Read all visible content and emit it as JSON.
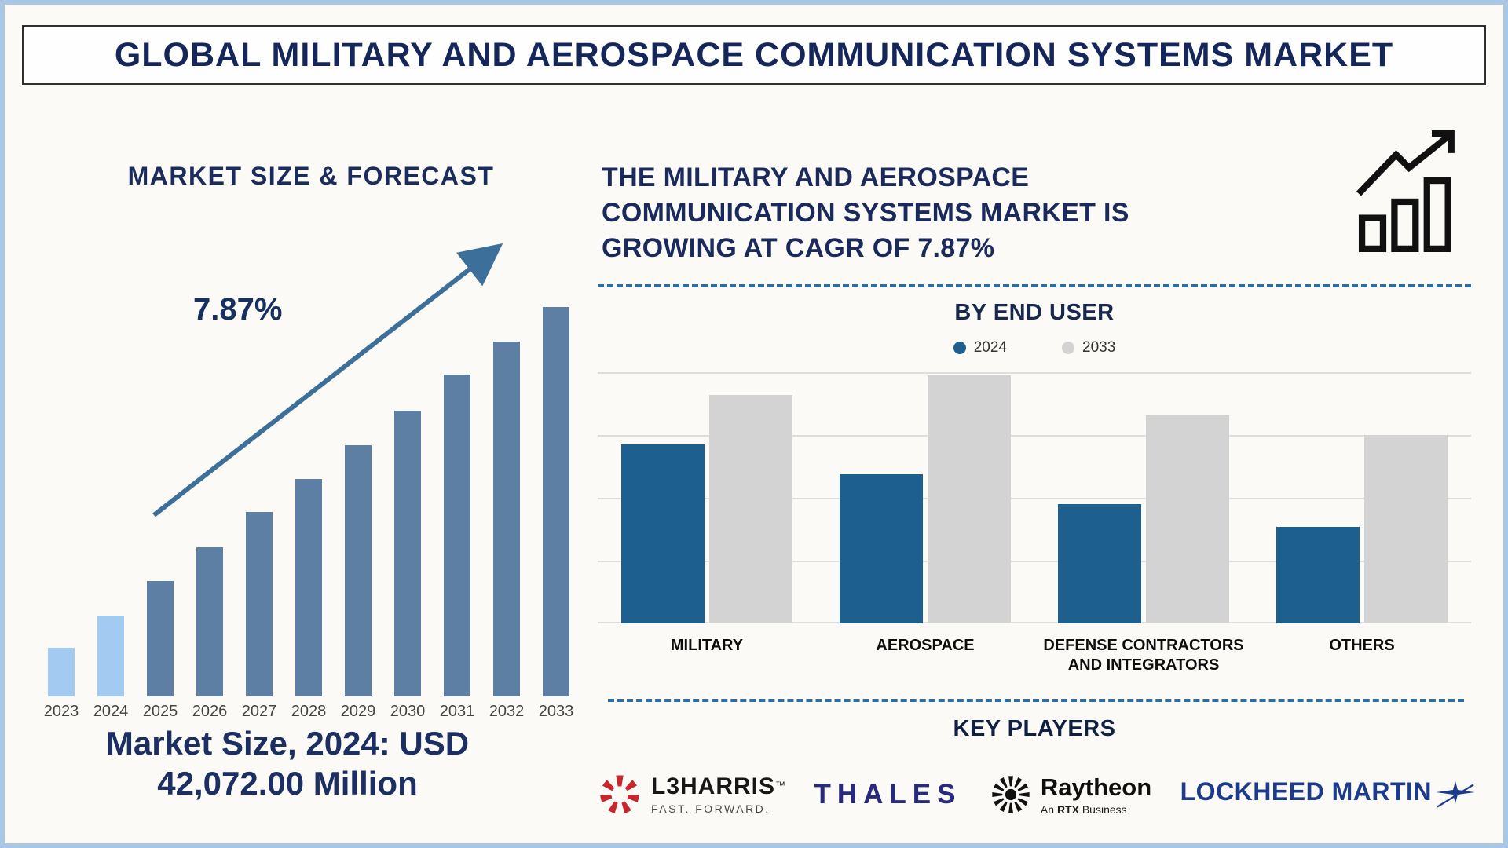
{
  "header": {
    "title": "GLOBAL MILITARY AND AEROSPACE COMMUNICATION SYSTEMS MARKET"
  },
  "left": {
    "chart_title": "MARKET SIZE & FORECAST",
    "cagr_label": "7.87%",
    "market_size_note": "Market Size, 2024: USD 42,072.00 Million"
  },
  "right": {
    "headline": "THE MILITARY AND AEROSPACE COMMUNICATION SYSTEMS MARKET IS GROWING AT CAGR OF 7.87%",
    "section_title": "BY END USER",
    "key_players_title": "KEY PLAYERS",
    "logos": {
      "l3harris": {
        "name": "L3HARRIS",
        "tm": "™",
        "tagline": "FAST. FORWARD."
      },
      "thales": {
        "name": "THALES"
      },
      "raytheon": {
        "name": "Raytheon",
        "sub_prefix": "An",
        "sub_bold": "RTX",
        "sub_suffix": "Business"
      },
      "lockheed": {
        "name": "LOCKHEED MARTIN"
      }
    }
  },
  "colors": {
    "navy_text": "#1a2a5c",
    "forecast_bar": "#5d7fa4",
    "forecast_bar_light": "#a3cbf2",
    "trend_arrow": "#3c6f99",
    "bar_2024": "#1d5f8f",
    "bar_2033": "#d3d3d3",
    "dashed_divider": "#2e6da4",
    "l3harris_red": "#c9252d",
    "thales_blue": "#282a7e",
    "lockheed_blue": "#1d3b8c"
  },
  "chart_data": [
    {
      "type": "bar",
      "title": "MARKET SIZE & FORECAST",
      "categories": [
        "2023",
        "2024",
        "2025",
        "2026",
        "2027",
        "2028",
        "2029",
        "2030",
        "2031",
        "2032",
        "2033"
      ],
      "values": [
        12.5,
        20.8,
        29.6,
        38.3,
        47.4,
        55.9,
        64.5,
        73.4,
        82.7,
        91.1,
        100
      ],
      "value_note": "relative bar heights as % of 2033 bar; no numeric axis shown",
      "highlighted_light_bars": [
        "2023",
        "2024"
      ],
      "annotation": "7.87%",
      "caption": "Market Size, 2024: USD 42,072.00 Million",
      "xlabel": "",
      "ylabel": "",
      "grid": false
    },
    {
      "type": "bar",
      "title": "BY END USER",
      "categories": [
        "MILITARY",
        "AEROSPACE",
        "DEFENSE CONTRACTORS AND INTEGRATORS",
        "OTHERS"
      ],
      "series": [
        {
          "name": "2024",
          "values": [
            72,
            60,
            48,
            39
          ]
        },
        {
          "name": "2033",
          "values": [
            92,
            100,
            84,
            76
          ]
        }
      ],
      "value_note": "relative bar heights as % of tallest (AEROSPACE 2033) bar; no numeric axis shown",
      "legend_position": "top",
      "grid": true
    }
  ]
}
